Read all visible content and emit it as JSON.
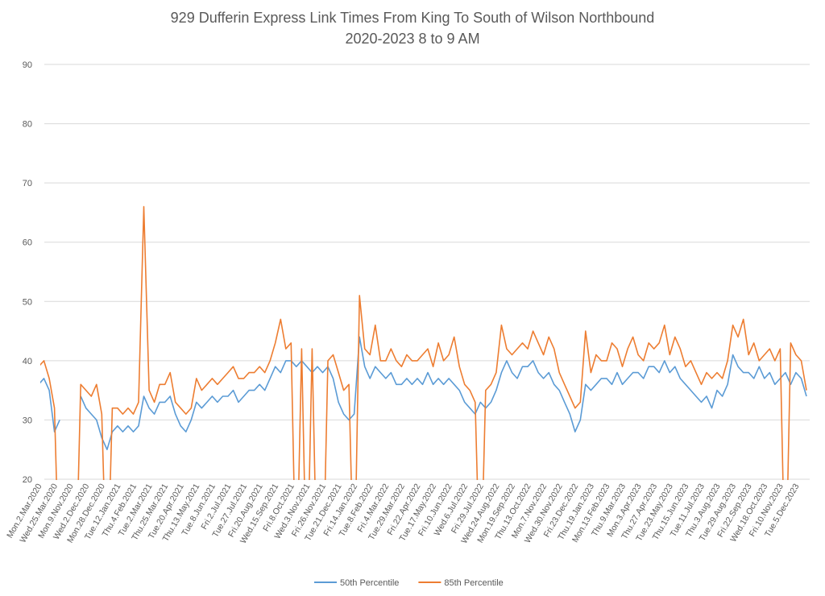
{
  "chart_data": {
    "type": "line",
    "title": "929 Dufferin Express Link Times From King To South of Wilson Northbound",
    "subtitle": "2020-2023 8 to 9 AM",
    "categories": [
      "Mon.2.Mar.2020",
      null,
      null,
      "Wed.25.Mar.2020",
      null,
      null,
      "Mon.9.Nov.2020",
      null,
      null,
      "Wed.2.Dec.2020",
      null,
      null,
      "Mon.28.Dec.2020",
      null,
      null,
      "Tue.12.Jan.2021",
      null,
      null,
      "Thu.4.Feb.2021",
      null,
      null,
      "Tue.2.Mar.2021",
      null,
      null,
      "Thu.25.Mar.2021",
      null,
      null,
      "Tue.20.Apr.2021",
      null,
      null,
      "Thu.13.May.2021",
      null,
      null,
      "Tue.8.Jun.2021",
      null,
      null,
      "Fri.2.Jul.2021",
      null,
      null,
      "Tue.27.Jul.2021",
      null,
      null,
      "Fri.20.Aug.2021",
      null,
      null,
      "Wed.15.Sep.2021",
      null,
      null,
      "Fri.8.Oct.2021",
      null,
      null,
      "Wed.3.Nov.2021",
      null,
      null,
      "Fri.26.Nov.2021",
      null,
      null,
      "Tue.21.Dec.2021",
      null,
      null,
      "Fri.14.Jan.2022",
      null,
      null,
      "Tue.8.Feb.2022",
      null,
      null,
      "Fri.4.Mar.2022",
      null,
      null,
      "Tue.29.Mar.2022",
      null,
      null,
      "Fri.22.Apr.2022",
      null,
      null,
      "Tue.17.May.2022",
      null,
      null,
      "Fri.10.Jun.2022",
      null,
      null,
      "Wed.6.Jul.2022",
      null,
      null,
      "Fri.29.Jul.2022",
      null,
      null,
      "Wed.24.Aug.2022",
      null,
      null,
      "Mon.19.Sep.2022",
      null,
      null,
      "Thu.13.Oct.2022",
      null,
      null,
      "Mon.7.Nov.2022",
      null,
      null,
      "Wed.30.Nov.2022",
      null,
      null,
      "Fri.23.Dec.2022",
      null,
      null,
      "Thu.19.Jan.2023",
      null,
      null,
      "Mon.13.Feb.2023",
      null,
      null,
      "Thu.9.Mar.2023",
      null,
      null,
      "Mon.3.Apr.2023",
      null,
      null,
      "Thu.27.Apr.2023",
      null,
      null,
      "Tue.23.May.2023",
      null,
      null,
      "Thu.15.Jun.2023",
      null,
      null,
      "Tue.11.Jul.2023",
      null,
      null,
      "Thu.3.Aug.2023",
      null,
      null,
      "Tue.29.Aug.2023",
      null,
      null,
      "Fri.22.Sep.2023",
      null,
      null,
      "Wed.18.Oct.2023",
      null,
      null,
      "Fri.10.Nov.2023",
      null,
      null,
      "Tue.5.Dec.2023",
      null,
      null
    ],
    "series": [
      {
        "name": "50th Percentile",
        "color": "#5b9bd5",
        "values": [
          36,
          37,
          35,
          28,
          30,
          null,
          null,
          null,
          34,
          32,
          31,
          30,
          27,
          25,
          28,
          29,
          28,
          29,
          28,
          29,
          34,
          32,
          31,
          33,
          33,
          34,
          31,
          29,
          28,
          30,
          33,
          32,
          33,
          34,
          33,
          34,
          34,
          35,
          33,
          34,
          35,
          35,
          36,
          35,
          37,
          39,
          38,
          40,
          40,
          39,
          40,
          39,
          38,
          39,
          38,
          39,
          37,
          33,
          31,
          30,
          31,
          44,
          39,
          37,
          39,
          38,
          37,
          38,
          36,
          36,
          37,
          36,
          37,
          36,
          38,
          36,
          37,
          36,
          37,
          36,
          35,
          33,
          32,
          31,
          33,
          32,
          33,
          35,
          38,
          40,
          38,
          37,
          39,
          39,
          40,
          38,
          37,
          38,
          36,
          35,
          33,
          31,
          28,
          30,
          36,
          35,
          36,
          37,
          37,
          36,
          38,
          36,
          37,
          38,
          38,
          37,
          39,
          39,
          38,
          40,
          38,
          39,
          37,
          36,
          35,
          34,
          33,
          34,
          32,
          35,
          34,
          36,
          41,
          39,
          38,
          38,
          37,
          39,
          37,
          38,
          36,
          37,
          38,
          36,
          38,
          37,
          34
        ]
      },
      {
        "name": "85th Percentile",
        "color": "#ed7d31",
        "values": [
          39,
          40,
          37,
          32,
          0,
          null,
          null,
          0,
          36,
          35,
          34,
          36,
          31,
          0,
          32,
          32,
          31,
          32,
          31,
          33,
          66,
          35,
          33,
          36,
          36,
          38,
          33,
          32,
          31,
          32,
          37,
          35,
          36,
          37,
          36,
          37,
          38,
          39,
          37,
          37,
          38,
          38,
          39,
          38,
          40,
          43,
          47,
          42,
          43,
          0,
          42,
          0,
          42,
          0,
          0,
          40,
          41,
          38,
          35,
          36,
          0,
          51,
          42,
          41,
          46,
          40,
          40,
          42,
          40,
          39,
          41,
          40,
          40,
          41,
          42,
          39,
          43,
          40,
          41,
          44,
          39,
          36,
          35,
          33,
          0,
          35,
          36,
          38,
          46,
          42,
          41,
          42,
          43,
          42,
          45,
          43,
          41,
          44,
          42,
          38,
          36,
          34,
          32,
          33,
          45,
          38,
          41,
          40,
          40,
          43,
          42,
          39,
          42,
          44,
          41,
          40,
          43,
          42,
          43,
          46,
          41,
          44,
          42,
          39,
          40,
          38,
          36,
          38,
          37,
          38,
          37,
          40,
          46,
          44,
          47,
          41,
          43,
          40,
          41,
          42,
          40,
          42,
          0,
          43,
          41,
          40,
          35
        ]
      }
    ],
    "ylim": [
      20,
      90
    ],
    "yticks": [
      20,
      30,
      40,
      50,
      60,
      70,
      80,
      90
    ],
    "grid": true,
    "legend": "bottom"
  }
}
